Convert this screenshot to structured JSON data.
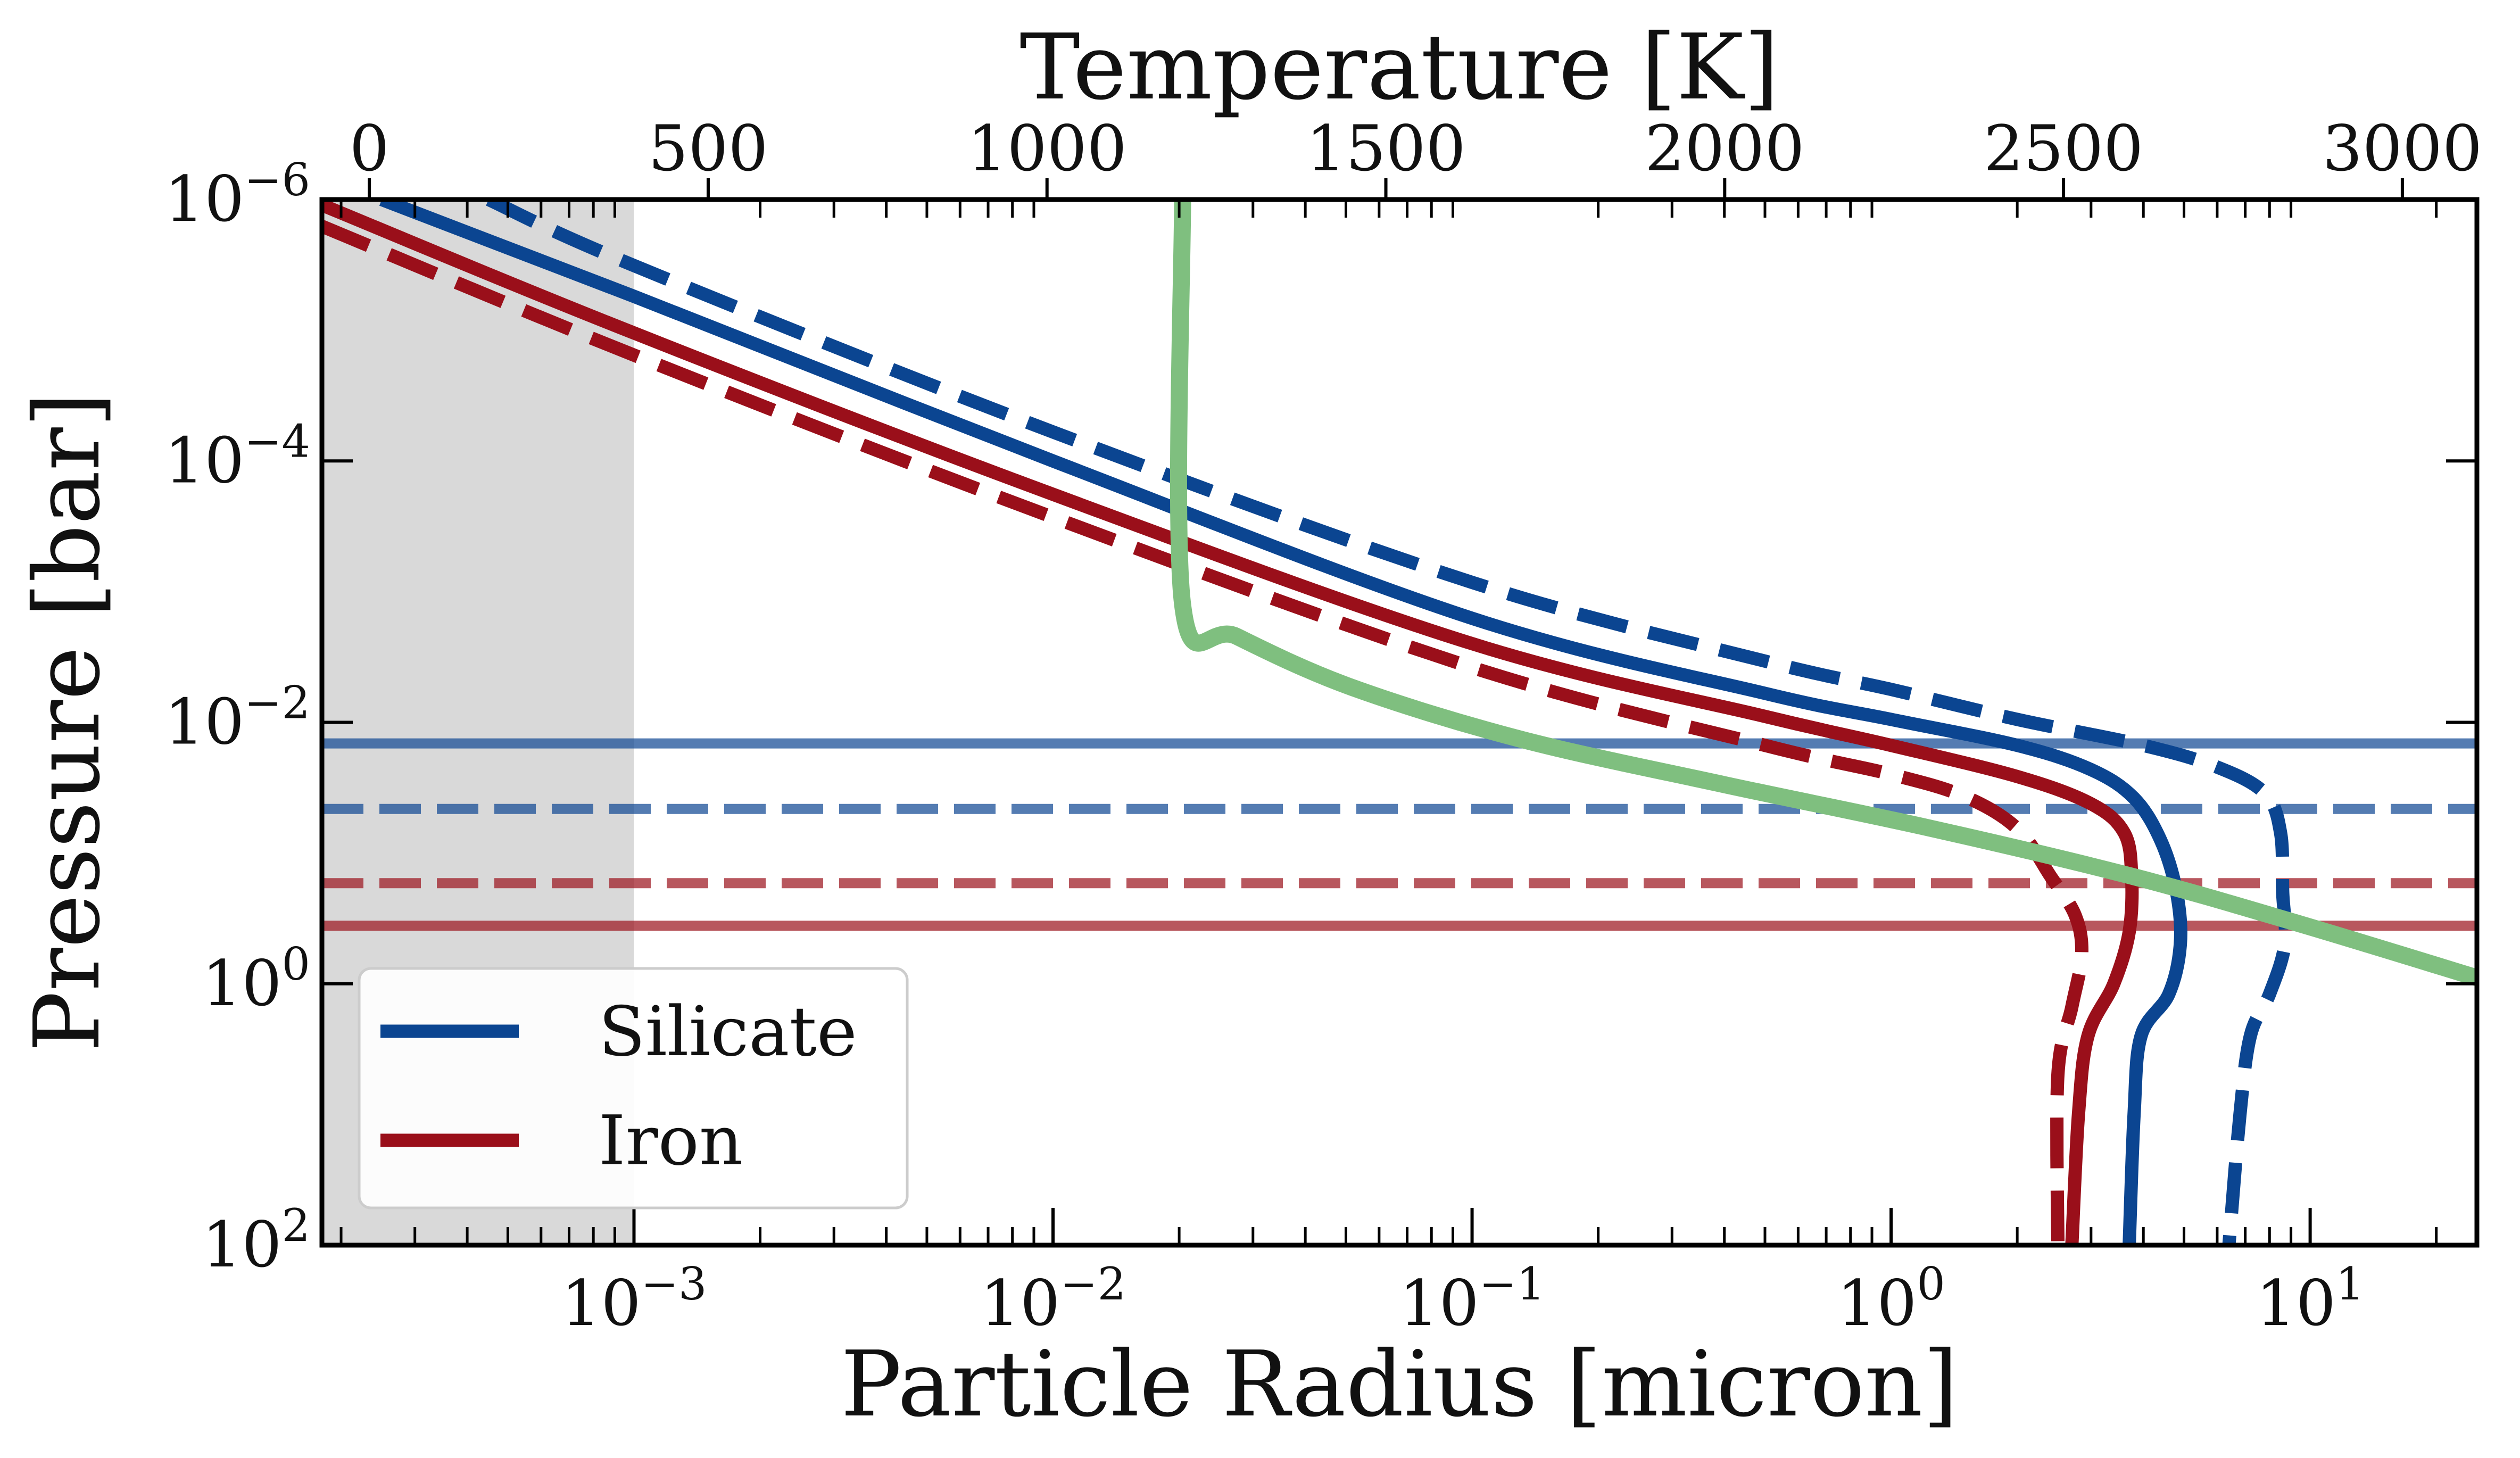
{
  "chart_data": {
    "type": "line",
    "x_bottom": {
      "label": "Particle Radius [micron]",
      "scale": "log",
      "range": [
        0.00018,
        25
      ],
      "ticks": [
        {
          "value": 0.001,
          "label_base": "10",
          "label_exp": "−3"
        },
        {
          "value": 0.01,
          "label_base": "10",
          "label_exp": "−2"
        },
        {
          "value": 0.1,
          "label_base": "10",
          "label_exp": "−1"
        },
        {
          "value": 1,
          "label_base": "10",
          "label_exp": "0"
        },
        {
          "value": 10,
          "label_base": "10",
          "label_exp": "1"
        }
      ]
    },
    "x_top": {
      "label": "Temperature [K]",
      "scale": "linear",
      "range": [
        -70,
        3110
      ],
      "ticks": [
        {
          "value": 0,
          "label": "0"
        },
        {
          "value": 500,
          "label": "500"
        },
        {
          "value": 1000,
          "label": "1000"
        },
        {
          "value": 1500,
          "label": "1500"
        },
        {
          "value": 2000,
          "label": "2000"
        },
        {
          "value": 2500,
          "label": "2500"
        },
        {
          "value": 3000,
          "label": "3000"
        }
      ]
    },
    "y": {
      "label": "Pressure [bar]",
      "scale": "log",
      "inverted": true,
      "range": [
        1e-06,
        100
      ],
      "ticks": [
        {
          "value": 1e-06,
          "label_base": "10",
          "label_exp": "−6"
        },
        {
          "value": 0.0001,
          "label_base": "10",
          "label_exp": "−4"
        },
        {
          "value": 0.01,
          "label_base": "10",
          "label_exp": "−2"
        },
        {
          "value": 1,
          "label_base": "10",
          "label_exp": "0"
        },
        {
          "value": 100,
          "label_base": "10",
          "label_exp": "2"
        }
      ]
    },
    "shaded_region": {
      "x_min": 0.00018,
      "x_max": 0.001,
      "color": "#d9d9d9"
    },
    "colors": {
      "silicate": "#0b4591",
      "iron": "#9a0f1a",
      "temperature": "#7fbf7f"
    },
    "legend": {
      "placement": "lower-left",
      "entries": [
        {
          "label": "Silicate",
          "color": "#0b4591"
        },
        {
          "label": "Iron",
          "color": "#9a0f1a"
        }
      ]
    },
    "series": [
      {
        "id": "silicate-solid",
        "axis": "bottom",
        "color": "#0b4591",
        "dash": "solid",
        "points": [
          [
            0.00025,
            1e-06
          ],
          [
            0.001,
            5.5e-06
          ],
          [
            0.01,
            0.0001
          ],
          [
            0.1,
            0.0016
          ],
          [
            0.5,
            0.006
          ],
          [
            1.0,
            0.0095
          ],
          [
            2.0,
            0.015
          ],
          [
            3.0,
            0.023
          ],
          [
            3.8,
            0.038
          ],
          [
            4.4,
            0.08
          ],
          [
            4.8,
            0.2
          ],
          [
            4.9,
            0.5
          ],
          [
            4.6,
            1.2
          ],
          [
            3.95,
            2.5
          ],
          [
            3.8,
            10
          ],
          [
            3.7,
            100
          ]
        ]
      },
      {
        "id": "silicate-dashed",
        "axis": "bottom",
        "color": "#0b4591",
        "dash": "dashed",
        "points": [
          [
            0.00045,
            1e-06
          ],
          [
            0.001,
            3.2e-06
          ],
          [
            0.01,
            6e-05
          ],
          [
            0.1,
            0.00085
          ],
          [
            0.5,
            0.0034
          ],
          [
            1.0,
            0.0056
          ],
          [
            2.0,
            0.0095
          ],
          [
            4.0,
            0.015
          ],
          [
            6.0,
            0.022
          ],
          [
            7.8,
            0.035
          ],
          [
            8.5,
            0.07
          ],
          [
            8.6,
            0.2
          ],
          [
            8.7,
            0.5
          ],
          [
            8.0,
            1.2
          ],
          [
            7.2,
            2.5
          ],
          [
            6.8,
            10
          ],
          [
            6.4,
            100
          ]
        ]
      },
      {
        "id": "iron-solid",
        "axis": "bottom",
        "color": "#9a0f1a",
        "dash": "solid",
        "points": [
          [
            0.00018,
            1.1e-06
          ],
          [
            0.001,
            1.05e-05
          ],
          [
            0.01,
            0.00018
          ],
          [
            0.1,
            0.0025
          ],
          [
            0.5,
            0.009
          ],
          [
            1.0,
            0.015
          ],
          [
            2.0,
            0.026
          ],
          [
            3.0,
            0.042
          ],
          [
            3.6,
            0.07
          ],
          [
            3.75,
            0.15
          ],
          [
            3.7,
            0.4
          ],
          [
            3.4,
            1.0
          ],
          [
            2.95,
            2.5
          ],
          [
            2.8,
            10
          ],
          [
            2.7,
            100
          ]
        ]
      },
      {
        "id": "iron-dashed",
        "axis": "bottom",
        "color": "#9a0f1a",
        "dash": "dashed",
        "points": [
          [
            0.00018,
            1.6e-06
          ],
          [
            0.001,
            1.55e-05
          ],
          [
            0.01,
            0.00027
          ],
          [
            0.1,
            0.0038
          ],
          [
            0.5,
            0.015
          ],
          [
            1.0,
            0.025
          ],
          [
            1.5,
            0.037
          ],
          [
            2.0,
            0.065
          ],
          [
            2.4,
            0.15
          ],
          [
            2.75,
            0.3
          ],
          [
            2.85,
            0.6
          ],
          [
            2.7,
            1.5
          ],
          [
            2.5,
            5
          ],
          [
            2.5,
            100
          ]
        ]
      },
      {
        "id": "temperature-profile",
        "axis": "top",
        "color": "#7fbf7f",
        "dash": "solid",
        "points": [
          [
            1200,
            1e-06
          ],
          [
            1200,
            0.00125
          ],
          [
            1280,
            0.0022
          ],
          [
            1450,
            0.0054
          ],
          [
            1700,
            0.0135
          ],
          [
            2000,
            0.03
          ],
          [
            2300,
            0.064
          ],
          [
            2600,
            0.15
          ],
          [
            2850,
            0.35
          ],
          [
            3110,
            0.9
          ]
        ]
      }
    ],
    "horizontal_lines": [
      {
        "id": "silicate-solid-level",
        "y": 0.0145,
        "color": "#0b4591",
        "dash": "solid"
      },
      {
        "id": "silicate-dashed-level",
        "y": 0.046,
        "color": "#0b4591",
        "dash": "dashed"
      },
      {
        "id": "iron-dashed-level",
        "y": 0.17,
        "color": "#9a0f1a",
        "dash": "dashed"
      },
      {
        "id": "iron-solid-level",
        "y": 0.36,
        "color": "#9a0f1a",
        "dash": "solid"
      }
    ]
  }
}
